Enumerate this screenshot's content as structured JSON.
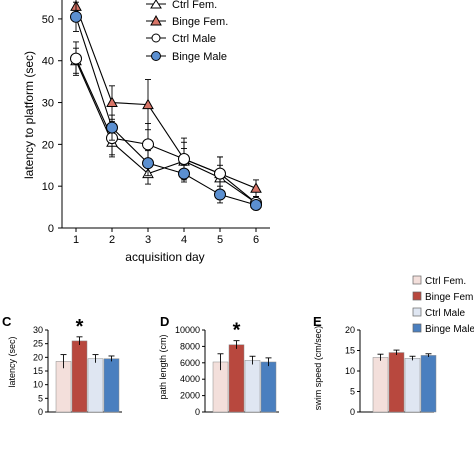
{
  "colors": {
    "ctrl_fem": "#f3dfdb",
    "binge_fem": "#b8483e",
    "ctrl_male": "#dfe6f2",
    "binge_male": "#4a7fbf",
    "binge_fem_marker": "#d87568",
    "binge_male_marker": "#5b8fd0",
    "axis": "#000000",
    "errorbar": "#000000"
  },
  "legend": {
    "labels": [
      "Ctrl Fem.",
      "Binge Fem.",
      "Ctrl Male",
      "Binge Male"
    ],
    "markers": [
      "triangle-open",
      "triangle-filled",
      "circle-open",
      "circle-filled"
    ]
  },
  "bar_legend": {
    "labels": [
      "Ctrl Fem.",
      "Binge Fem.",
      "Ctrl Male",
      "Binge Male"
    ]
  },
  "panel_letters": {
    "C": "C",
    "D": "D",
    "E": "E"
  },
  "chart_data": [
    {
      "type": "line",
      "xlabel": "acquisition day",
      "ylabel": "latency to platform (sec)",
      "x": [
        1,
        2,
        3,
        4,
        5,
        6
      ],
      "xticks": [
        "1",
        "2",
        "3",
        "4",
        "5",
        "6"
      ],
      "yticks": [
        "0",
        "10",
        "20",
        "30",
        "40",
        "50"
      ],
      "ylim": [
        0,
        55
      ],
      "grid": false,
      "legend_position": "top-right",
      "series": [
        {
          "name": "Ctrl Fem.",
          "values": [
            40,
            20.5,
            13,
            16,
            12,
            6
          ],
          "errors": [
            3,
            3.5,
            2.5,
            3,
            3,
            1.5
          ]
        },
        {
          "name": "Binge Fem.",
          "values": [
            53,
            30,
            29.5,
            16.5,
            13,
            9.5
          ],
          "errors": [
            3,
            4,
            6,
            5,
            4,
            2
          ]
        },
        {
          "name": "Ctrl Male",
          "values": [
            40.5,
            21.5,
            20,
            16.5,
            13,
            6
          ],
          "errors": [
            4,
            4,
            5,
            4,
            4,
            1.5
          ]
        },
        {
          "name": "Binge Male",
          "values": [
            50.5,
            24,
            15.5,
            13,
            8,
            5.5
          ],
          "errors": [
            3.5,
            3,
            3,
            2,
            2,
            1
          ]
        }
      ]
    },
    {
      "type": "bar",
      "panel": "C",
      "ylabel": "latency (sec)",
      "categories": [
        "Ctrl Fem.",
        "Binge Fem.",
        "Ctrl Male",
        "Binge Male"
      ],
      "values": [
        18.5,
        26,
        19.5,
        19.5
      ],
      "errors": [
        2.5,
        1.5,
        1.5,
        1
      ],
      "yticks": [
        "0",
        "5",
        "10",
        "15",
        "20",
        "25",
        "30"
      ],
      "ylim": [
        0,
        30
      ],
      "annotation": "*"
    },
    {
      "type": "bar",
      "panel": "D",
      "ylabel": "path length (cm)",
      "categories": [
        "Ctrl Fem.",
        "Binge Fem.",
        "Ctrl Male",
        "Binge Male"
      ],
      "values": [
        6100,
        8200,
        6300,
        6100
      ],
      "errors": [
        1000,
        500,
        500,
        500
      ],
      "yticks": [
        "0",
        "2000",
        "4000",
        "6000",
        "8000",
        "10000"
      ],
      "ylim": [
        0,
        10000
      ],
      "annotation": "*"
    },
    {
      "type": "bar",
      "panel": "E",
      "ylabel": "swim speed (cm/sec)",
      "categories": [
        "Ctrl Fem.",
        "Binge Fem.",
        "Ctrl Male",
        "Binge Male"
      ],
      "values": [
        13.3,
        14.5,
        13.1,
        13.8
      ],
      "errors": [
        0.8,
        0.6,
        0.5,
        0.4
      ],
      "yticks": [
        "0",
        "5",
        "10",
        "15",
        "20"
      ],
      "ylim": [
        0,
        20
      ],
      "annotation": ""
    }
  ]
}
